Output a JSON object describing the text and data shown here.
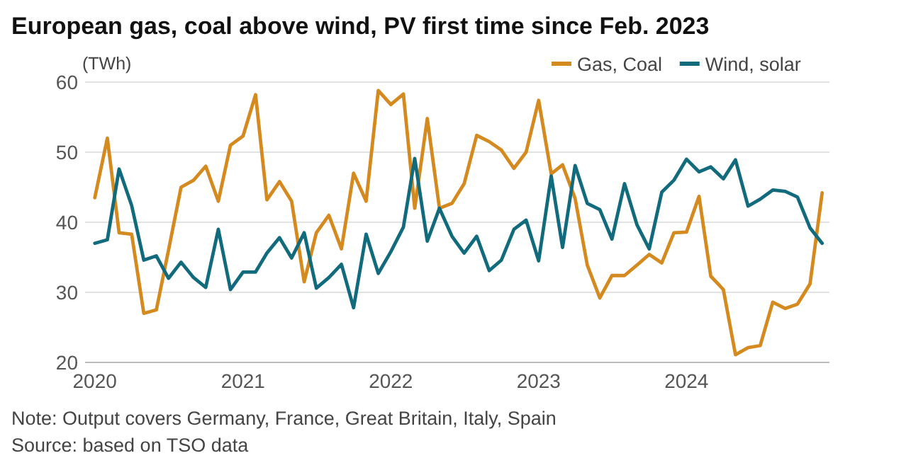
{
  "chart_data": {
    "type": "line",
    "title": "European gas, coal above wind, PV first time since Feb. 2023",
    "ylabel": "(TWh)",
    "x": [
      "2020-01",
      "2020-02",
      "2020-03",
      "2020-04",
      "2020-05",
      "2020-06",
      "2020-07",
      "2020-08",
      "2020-09",
      "2020-10",
      "2020-11",
      "2020-12",
      "2021-01",
      "2021-02",
      "2021-03",
      "2021-04",
      "2021-05",
      "2021-06",
      "2021-07",
      "2021-08",
      "2021-09",
      "2021-10",
      "2021-11",
      "2021-12",
      "2022-01",
      "2022-02",
      "2022-03",
      "2022-04",
      "2022-05",
      "2022-06",
      "2022-07",
      "2022-08",
      "2022-09",
      "2022-10",
      "2022-11",
      "2022-12",
      "2023-01",
      "2023-02",
      "2023-03",
      "2023-04",
      "2023-05",
      "2023-06",
      "2023-07",
      "2023-08",
      "2023-09",
      "2023-10",
      "2023-11",
      "2023-12",
      "2024-01",
      "2024-02",
      "2024-03",
      "2024-04",
      "2024-05",
      "2024-06",
      "2024-07",
      "2024-08",
      "2024-09",
      "2024-10",
      "2024-11",
      "2024-12"
    ],
    "series": [
      {
        "name": "Gas, Coal",
        "color": "#d48a1f",
        "values": [
          43.5,
          52,
          38.5,
          38.3,
          27,
          27.5,
          36,
          45,
          46,
          48,
          43,
          51,
          52.3,
          58.2,
          43.2,
          45.8,
          43,
          31.5,
          38.5,
          41,
          36.2,
          47,
          43,
          58.8,
          56.8,
          58.3,
          42,
          54.8,
          42,
          42.7,
          45.5,
          52.4,
          51.5,
          50.3,
          47.7,
          50,
          57.4,
          46.9,
          48.2,
          43.4,
          33.9,
          29.2,
          32.4,
          32.4,
          33.9,
          35.4,
          34.2,
          38.5,
          38.6,
          43.7,
          32.3,
          30.4,
          21.1,
          22.1,
          22.4,
          28.6,
          27.7,
          28.3,
          31.2,
          44.2
        ]
      },
      {
        "name": "Wind, solar",
        "color": "#126b7d",
        "values": [
          37,
          37.5,
          47.6,
          42.4,
          34.6,
          35.2,
          32,
          34.3,
          32.1,
          30.7,
          39,
          30.4,
          32.9,
          32.9,
          35.6,
          37.8,
          34.9,
          38.5,
          30.6,
          32.1,
          34,
          27.8,
          38.3,
          32.7,
          35.8,
          39.3,
          49.1,
          37.3,
          42,
          38,
          35.6,
          38,
          33.1,
          34.6,
          39,
          40.3,
          34.5,
          46.6,
          36.4,
          48.1,
          42.7,
          41.8,
          37.6,
          45.5,
          39.6,
          36.2,
          44.3,
          46,
          49,
          47.2,
          47.9,
          46.2,
          48.9,
          42.3,
          43.3,
          44.6,
          44.4,
          43.6,
          39.2,
          37
        ]
      }
    ],
    "xlim": [
      "2019-12-08",
      "2024-12-19"
    ],
    "xticks": [
      {
        "value": "2020-01",
        "label": "2020"
      },
      {
        "value": "2021-01",
        "label": "2021"
      },
      {
        "value": "2022-01",
        "label": "2022"
      },
      {
        "value": "2023-01",
        "label": "2023"
      },
      {
        "value": "2024-01",
        "label": "2024"
      }
    ],
    "ylim": [
      20,
      60
    ],
    "yticks": [
      20,
      30,
      40,
      50,
      60
    ],
    "grid": "y",
    "legend": "top right",
    "line_style": "solid",
    "annotations": [
      "Note: Output covers Germany, France, Great Britain, Italy, Spain",
      "Source: based on TSO data"
    ]
  }
}
